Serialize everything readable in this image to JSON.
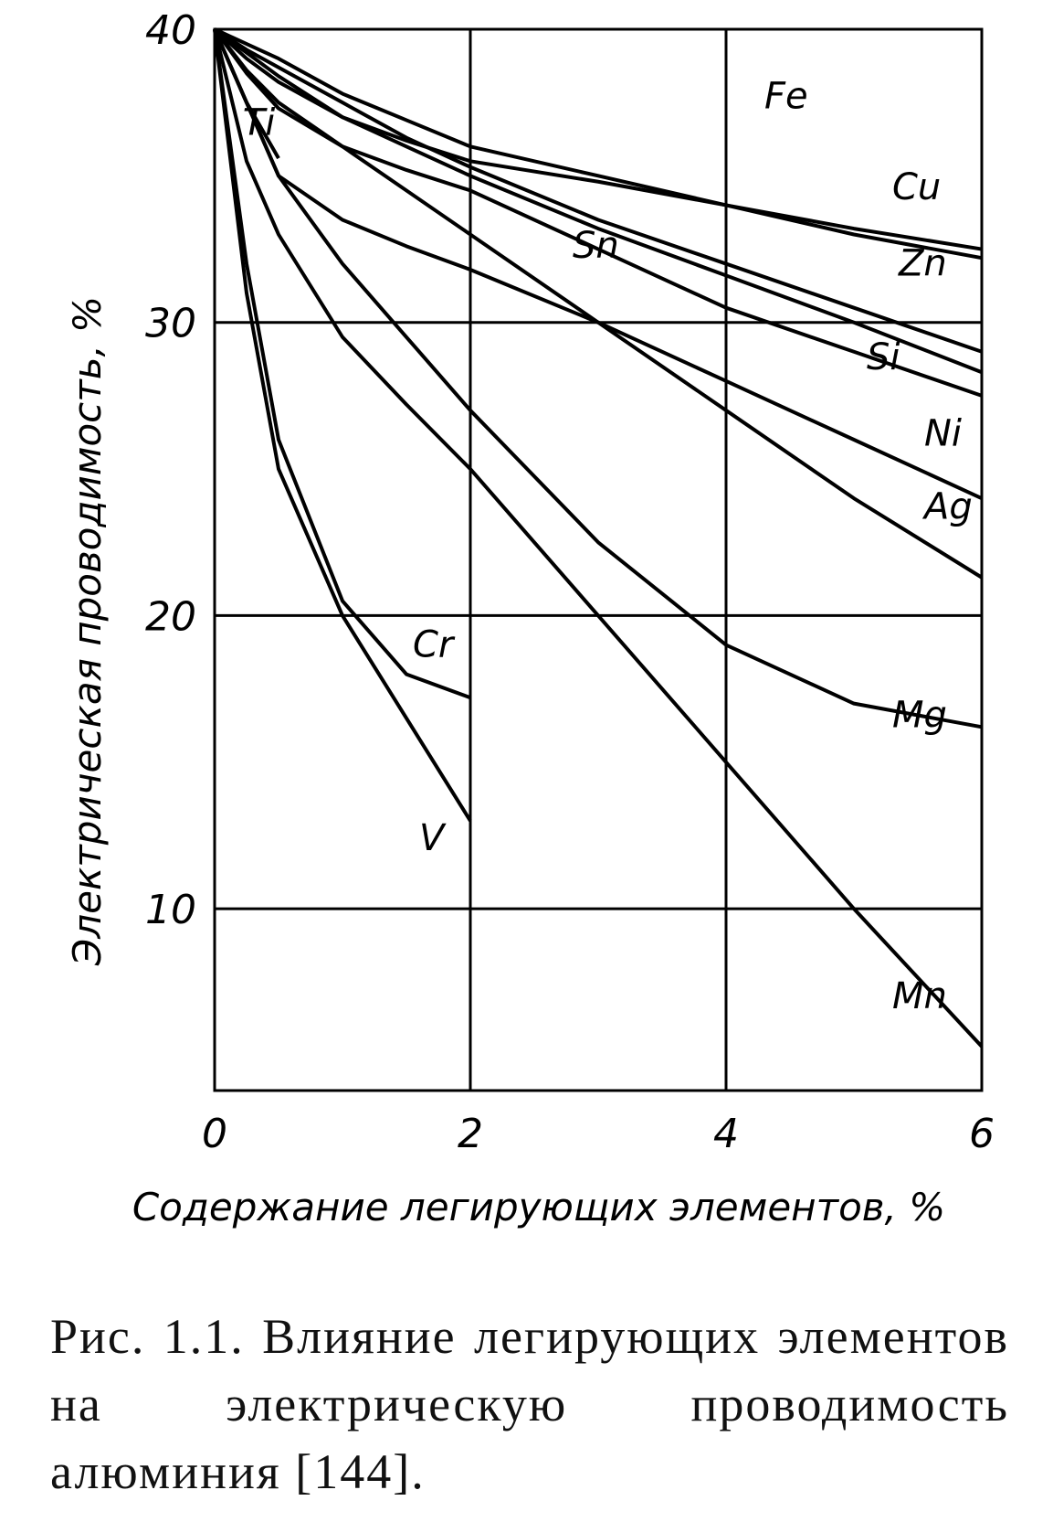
{
  "chart_data": {
    "type": "line",
    "xlabel": "Содержание легирующих элементов, %",
    "ylabel": "Электрическая проводимость, %",
    "x": [
      0,
      0.25,
      0.5,
      1,
      1.5,
      2,
      3,
      4,
      5,
      6
    ],
    "xlim": [
      0,
      6
    ],
    "xticks": [
      0,
      2,
      4,
      6
    ],
    "ylim": [
      3.8,
      40
    ],
    "yticks": [
      10,
      20,
      30,
      40
    ],
    "grid": true,
    "series": [
      {
        "name": "Fe",
        "color": "#000000",
        "values": [
          40,
          39.5,
          39,
          37.8,
          36.9,
          36,
          35,
          34,
          33.2,
          32.5
        ]
      },
      {
        "name": "Cu",
        "color": "#000000",
        "values": [
          40,
          39.2,
          38.4,
          37,
          36.2,
          35.5,
          34.8,
          34,
          33,
          32.2
        ]
      },
      {
        "name": "Zn",
        "color": "#000000",
        "values": [
          40,
          39.3,
          38.7,
          37.5,
          36.3,
          35.3,
          33.5,
          32,
          30.5,
          29
        ]
      },
      {
        "name": "Si",
        "color": "#000000",
        "values": [
          40,
          39,
          38.2,
          37,
          36,
          35,
          33.2,
          31.6,
          30,
          28.3
        ]
      },
      {
        "name": "Sn",
        "color": "#000000",
        "values": [
          40,
          37.5,
          35,
          33.5,
          32.6,
          31.8,
          30,
          28,
          26,
          24
        ]
      },
      {
        "name": "Ni",
        "color": "#000000",
        "values": [
          40,
          38.5,
          37.3,
          36,
          35.2,
          34.5,
          32.5,
          30.5,
          29,
          27.5
        ]
      },
      {
        "name": "Ag",
        "color": "#000000",
        "values": [
          40,
          38.6,
          37.5,
          36,
          34.5,
          33,
          30,
          27,
          24,
          21.3
        ]
      },
      {
        "name": "Ti",
        "color": "#000000",
        "values": [
          40,
          37.5,
          35.6,
          null,
          null,
          null,
          null,
          null,
          null,
          null
        ]
      },
      {
        "name": "Mg",
        "color": "#000000",
        "values": [
          40,
          37.5,
          35,
          32,
          29.5,
          27,
          22.5,
          19,
          17,
          16.2
        ]
      },
      {
        "name": "Mn",
        "color": "#000000",
        "values": [
          40,
          35.5,
          33,
          29.5,
          27.2,
          25,
          20,
          15,
          10,
          5.3
        ]
      },
      {
        "name": "Cr",
        "color": "#000000",
        "values": [
          40,
          32,
          26,
          20.5,
          18,
          17.2,
          null,
          null,
          null,
          null
        ]
      },
      {
        "name": "V",
        "color": "#000000",
        "values": [
          40,
          31,
          25,
          20,
          16.5,
          13,
          null,
          null,
          null,
          null
        ]
      }
    ]
  },
  "caption": "Рис. 1.1. Влияние легирующих элементов на электрическую проводимость алюминия [144]."
}
